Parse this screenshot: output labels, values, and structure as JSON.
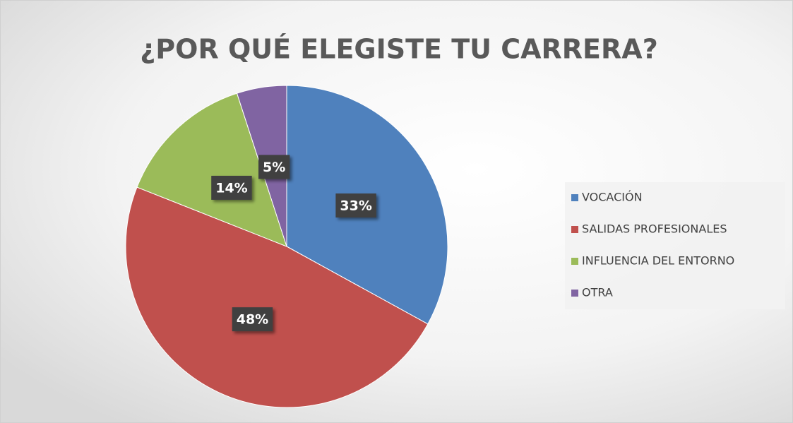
{
  "chart_data": {
    "type": "pie",
    "title": "¿POR QUÉ ELEGISTE TU CARRERA?",
    "categories": [
      "VOCACIÓN",
      "SALIDAS PROFESIONALES",
      "INFLUENCIA DEL ENTORNO",
      "OTRA"
    ],
    "values": [
      33,
      48,
      14,
      5
    ],
    "value_labels": [
      "33%",
      "48%",
      "14%",
      "5%"
    ],
    "colors": [
      "#4f81bd",
      "#c0504d",
      "#9bbb59",
      "#8064a2"
    ],
    "legend": "right"
  }
}
